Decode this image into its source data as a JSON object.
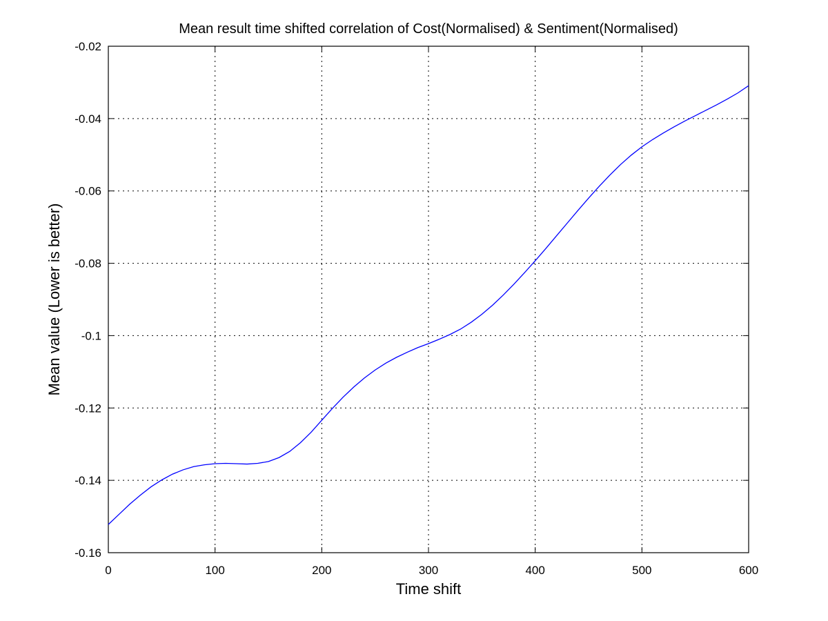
{
  "chart_data": {
    "type": "line",
    "title": "Mean result time shifted correlation of Cost(Normalised) & Sentiment(Normalised)",
    "xlabel": "Time shift",
    "ylabel": "Mean value (Lower is better)",
    "xlim": [
      0,
      600
    ],
    "ylim": [
      -0.16,
      -0.02
    ],
    "x_ticks": [
      0,
      100,
      200,
      300,
      400,
      500,
      600
    ],
    "x_tick_labels": [
      "0",
      "100",
      "200",
      "300",
      "400",
      "500",
      "600"
    ],
    "y_ticks": [
      -0.16,
      -0.14,
      -0.12,
      -0.1,
      -0.08,
      -0.06,
      -0.04,
      -0.02
    ],
    "y_tick_labels": [
      "-0.16",
      "-0.14",
      "-0.12",
      "-0.1",
      "-0.08",
      "-0.06",
      "-0.04",
      "-0.02"
    ],
    "grid": true,
    "series": [
      {
        "color": "#0000ff",
        "x": [
          0,
          10,
          20,
          30,
          40,
          50,
          60,
          70,
          80,
          90,
          100,
          110,
          120,
          130,
          140,
          150,
          160,
          170,
          180,
          190,
          200,
          210,
          220,
          230,
          240,
          250,
          260,
          270,
          280,
          290,
          300,
          310,
          320,
          330,
          340,
          350,
          360,
          370,
          380,
          390,
          400,
          410,
          420,
          430,
          440,
          450,
          460,
          470,
          480,
          490,
          500,
          510,
          520,
          530,
          540,
          550,
          560,
          570,
          580,
          590,
          600
        ],
        "y": [
          -0.1522,
          -0.1494,
          -0.1466,
          -0.1441,
          -0.1418,
          -0.1399,
          -0.1383,
          -0.1371,
          -0.1362,
          -0.1357,
          -0.1354,
          -0.1353,
          -0.1354,
          -0.1355,
          -0.1353,
          -0.1348,
          -0.1337,
          -0.132,
          -0.1296,
          -0.1267,
          -0.1234,
          -0.1201,
          -0.117,
          -0.1142,
          -0.1117,
          -0.1095,
          -0.1076,
          -0.106,
          -0.1046,
          -0.1033,
          -0.1022,
          -0.101,
          -0.0997,
          -0.0982,
          -0.0963,
          -0.0941,
          -0.0916,
          -0.0888,
          -0.0858,
          -0.0826,
          -0.0793,
          -0.0759,
          -0.0724,
          -0.0689,
          -0.0654,
          -0.062,
          -0.0587,
          -0.0556,
          -0.0527,
          -0.0501,
          -0.0478,
          -0.0458,
          -0.044,
          -0.0423,
          -0.0407,
          -0.0392,
          -0.0377,
          -0.0362,
          -0.0346,
          -0.0329,
          -0.0309
        ]
      }
    ]
  }
}
